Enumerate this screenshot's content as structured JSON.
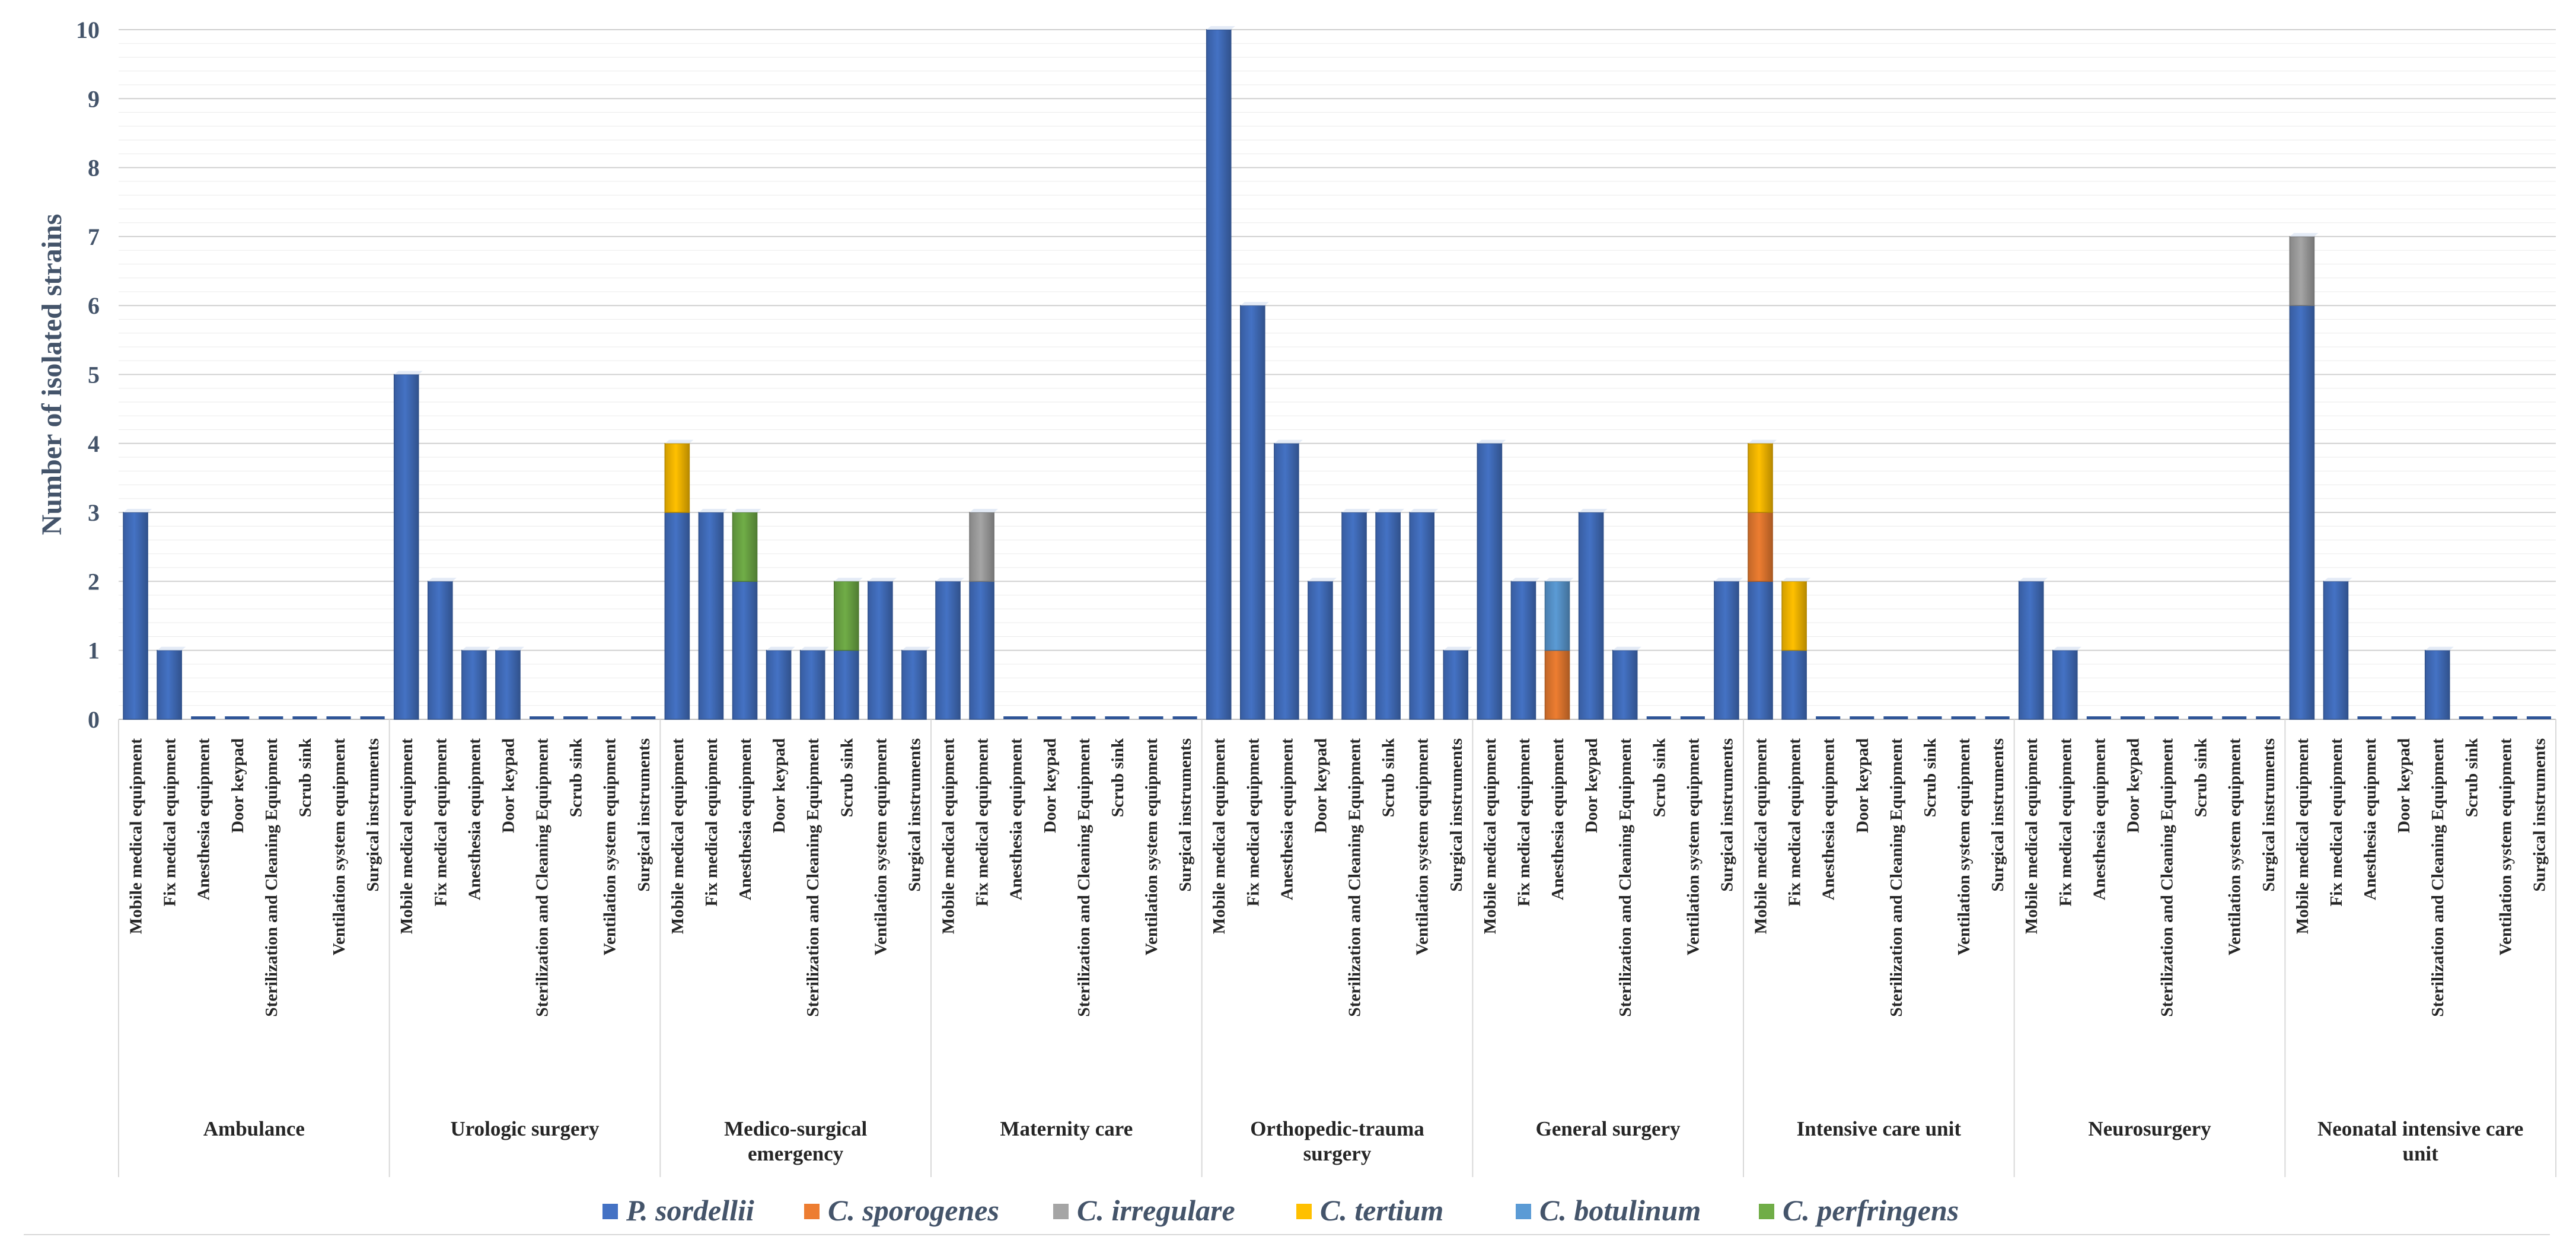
{
  "chart_data": {
    "type": "bar",
    "stacked": true,
    "title": "",
    "ylabel": "Number of isolated strains",
    "xlabel": "",
    "ylim": [
      0,
      10
    ],
    "yticks": [
      0,
      1,
      2,
      3,
      4,
      5,
      6,
      7,
      8,
      9,
      10
    ],
    "grid": true,
    "legend_position": "bottom",
    "subcategories": [
      "Mobile medical equipment",
      "Fix medical equipment",
      "Anesthesia equipment",
      "Door keypad",
      "Sterilization and Cleaning Equipment",
      "Scrub sink",
      "Ventilation system equipment",
      "Surgical instruments"
    ],
    "groups": [
      {
        "name": "Ambulance",
        "label_lines": [
          "Ambulance"
        ]
      },
      {
        "name": "Urologic surgery",
        "label_lines": [
          "Urologic surgery"
        ]
      },
      {
        "name": "Medico-surgical emergency",
        "label_lines": [
          "Medico-surgical",
          "emergency"
        ]
      },
      {
        "name": "Maternity care",
        "label_lines": [
          "Maternity care"
        ]
      },
      {
        "name": "Orthopedic-trauma surgery",
        "label_lines": [
          "Orthopedic-trauma",
          "surgery"
        ]
      },
      {
        "name": "General surgery",
        "label_lines": [
          "General surgery"
        ]
      },
      {
        "name": "Intensive care unit",
        "label_lines": [
          "Intensive care unit"
        ]
      },
      {
        "name": "Neurosurgery",
        "label_lines": [
          "Neurosurgery"
        ]
      },
      {
        "name": "Neonatal intensive care unit",
        "label_lines": [
          "Neonatal intensive care",
          "unit"
        ]
      }
    ],
    "series": [
      {
        "name": "P. sordellii",
        "color": "#4472c4",
        "values": [
          [
            3,
            1,
            0,
            0,
            0,
            0,
            0,
            0
          ],
          [
            5,
            2,
            1,
            1,
            0,
            0,
            0,
            0
          ],
          [
            3,
            3,
            2,
            1,
            1,
            1,
            2,
            1
          ],
          [
            2,
            2,
            0,
            0,
            0,
            0,
            0,
            0
          ],
          [
            10,
            6,
            4,
            2,
            3,
            3,
            3,
            1
          ],
          [
            4,
            2,
            0,
            3,
            1,
            0,
            0,
            2
          ],
          [
            2,
            1,
            0,
            0,
            0,
            0,
            0,
            0
          ],
          [
            2,
            1,
            0,
            0,
            0,
            0,
            0,
            0
          ],
          [
            6,
            2,
            0,
            0,
            1,
            0,
            0,
            0
          ]
        ]
      },
      {
        "name": "C. sporogenes",
        "color": "#ed7d31",
        "values": [
          [
            0,
            0,
            0,
            0,
            0,
            0,
            0,
            0
          ],
          [
            0,
            0,
            0,
            0,
            0,
            0,
            0,
            0
          ],
          [
            0,
            0,
            0,
            0,
            0,
            0,
            0,
            0
          ],
          [
            0,
            0,
            0,
            0,
            0,
            0,
            0,
            0
          ],
          [
            0,
            0,
            0,
            0,
            0,
            0,
            0,
            0
          ],
          [
            0,
            0,
            1,
            0,
            0,
            0,
            0,
            0
          ],
          [
            1,
            0,
            0,
            0,
            0,
            0,
            0,
            0
          ],
          [
            0,
            0,
            0,
            0,
            0,
            0,
            0,
            0
          ],
          [
            0,
            0,
            0,
            0,
            0,
            0,
            0,
            0
          ]
        ]
      },
      {
        "name": "C. irregulare",
        "color": "#a5a5a5",
        "values": [
          [
            0,
            0,
            0,
            0,
            0,
            0,
            0,
            0
          ],
          [
            0,
            0,
            0,
            0,
            0,
            0,
            0,
            0
          ],
          [
            0,
            0,
            0,
            0,
            0,
            0,
            0,
            0
          ],
          [
            0,
            1,
            0,
            0,
            0,
            0,
            0,
            0
          ],
          [
            0,
            0,
            0,
            0,
            0,
            0,
            0,
            0
          ],
          [
            0,
            0,
            0,
            0,
            0,
            0,
            0,
            0
          ],
          [
            0,
            0,
            0,
            0,
            0,
            0,
            0,
            0
          ],
          [
            0,
            0,
            0,
            0,
            0,
            0,
            0,
            0
          ],
          [
            1,
            0,
            0,
            0,
            0,
            0,
            0,
            0
          ]
        ]
      },
      {
        "name": "C. tertium",
        "color": "#ffc000",
        "values": [
          [
            0,
            0,
            0,
            0,
            0,
            0,
            0,
            0
          ],
          [
            0,
            0,
            0,
            0,
            0,
            0,
            0,
            0
          ],
          [
            1,
            0,
            0,
            0,
            0,
            0,
            0,
            0
          ],
          [
            0,
            0,
            0,
            0,
            0,
            0,
            0,
            0
          ],
          [
            0,
            0,
            0,
            0,
            0,
            0,
            0,
            0
          ],
          [
            0,
            0,
            0,
            0,
            0,
            0,
            0,
            0
          ],
          [
            1,
            1,
            0,
            0,
            0,
            0,
            0,
            0
          ],
          [
            0,
            0,
            0,
            0,
            0,
            0,
            0,
            0
          ],
          [
            0,
            0,
            0,
            0,
            0,
            0,
            0,
            0
          ]
        ]
      },
      {
        "name": "C. botulinum",
        "color": "#5b9bd5",
        "values": [
          [
            0,
            0,
            0,
            0,
            0,
            0,
            0,
            0
          ],
          [
            0,
            0,
            0,
            0,
            0,
            0,
            0,
            0
          ],
          [
            0,
            0,
            0,
            0,
            0,
            0,
            0,
            0
          ],
          [
            0,
            0,
            0,
            0,
            0,
            0,
            0,
            0
          ],
          [
            0,
            0,
            0,
            0,
            0,
            0,
            0,
            0
          ],
          [
            0,
            0,
            1,
            0,
            0,
            0,
            0,
            0
          ],
          [
            0,
            0,
            0,
            0,
            0,
            0,
            0,
            0
          ],
          [
            0,
            0,
            0,
            0,
            0,
            0,
            0,
            0
          ],
          [
            0,
            0,
            0,
            0,
            0,
            0,
            0,
            0
          ]
        ]
      },
      {
        "name": "C. perfringens",
        "color": "#70ad47",
        "values": [
          [
            0,
            0,
            0,
            0,
            0,
            0,
            0,
            0
          ],
          [
            0,
            0,
            0,
            0,
            0,
            0,
            0,
            0
          ],
          [
            0,
            0,
            1,
            0,
            0,
            1,
            0,
            0
          ],
          [
            0,
            0,
            0,
            0,
            0,
            0,
            0,
            0
          ],
          [
            0,
            0,
            0,
            0,
            0,
            0,
            0,
            0
          ],
          [
            0,
            0,
            0,
            0,
            0,
            0,
            0,
            0
          ],
          [
            0,
            0,
            0,
            0,
            0,
            0,
            0,
            0
          ],
          [
            0,
            0,
            0,
            0,
            0,
            0,
            0,
            0
          ],
          [
            0,
            0,
            0,
            0,
            0,
            0,
            0,
            0
          ]
        ]
      }
    ]
  }
}
